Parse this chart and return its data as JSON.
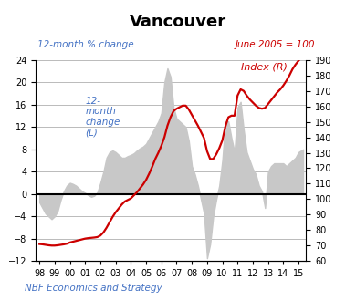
{
  "title": "Vancouver",
  "subtitle_left": "12-month % change",
  "subtitle_right": "June 2005 = 100",
  "label_left": "12-\nmonth\nchange\n(L)",
  "label_right": "Index (R)",
  "footer": "NBF Economics and Strategy",
  "left_ylim": [
    -12,
    24
  ],
  "right_ylim": [
    60,
    190
  ],
  "left_yticks": [
    -12,
    -8,
    -4,
    0,
    4,
    8,
    12,
    16,
    20,
    24
  ],
  "right_yticks": [
    60,
    70,
    80,
    90,
    100,
    110,
    120,
    130,
    140,
    150,
    160,
    170,
    180,
    190
  ],
  "xtick_labels": [
    "98",
    "99",
    "00",
    "01",
    "02",
    "03",
    "04",
    "05",
    "06",
    "07",
    "08",
    "09",
    "10",
    "11",
    "12",
    "13",
    "14",
    "15"
  ],
  "area_data_x": [
    1998.0,
    1998.2,
    1998.4,
    1998.6,
    1998.8,
    1999.0,
    1999.2,
    1999.4,
    1999.6,
    1999.8,
    2000.0,
    2000.2,
    2000.4,
    2000.6,
    2000.8,
    2001.0,
    2001.2,
    2001.4,
    2001.6,
    2001.8,
    2002.0,
    2002.2,
    2002.4,
    2002.6,
    2002.8,
    2003.0,
    2003.2,
    2003.4,
    2003.6,
    2003.8,
    2004.0,
    2004.2,
    2004.4,
    2004.6,
    2004.8,
    2005.0,
    2005.2,
    2005.4,
    2005.6,
    2005.8,
    2006.0,
    2006.2,
    2006.4,
    2006.6,
    2006.8,
    2007.0,
    2007.2,
    2007.4,
    2007.6,
    2007.8,
    2008.0,
    2008.2,
    2008.4,
    2008.6,
    2008.8,
    2009.0,
    2009.2,
    2009.4,
    2009.6,
    2009.8,
    2010.0,
    2010.2,
    2010.4,
    2010.6,
    2010.8,
    2011.0,
    2011.2,
    2011.4,
    2011.6,
    2011.8,
    2012.0,
    2012.2,
    2012.4,
    2012.6,
    2012.8,
    2013.0,
    2013.2,
    2013.4,
    2013.6,
    2013.8,
    2014.0,
    2014.2,
    2014.4,
    2014.6,
    2014.8,
    2015.0,
    2015.3
  ],
  "area_data_y": [
    -1.5,
    -2.5,
    -3.5,
    -4.0,
    -4.5,
    -4.0,
    -3.0,
    -1.0,
    0.5,
    1.5,
    2.0,
    1.8,
    1.5,
    1.0,
    0.5,
    0.2,
    -0.2,
    -0.5,
    -0.3,
    0.3,
    2.0,
    4.0,
    6.5,
    7.5,
    7.8,
    7.5,
    7.0,
    6.5,
    6.5,
    6.8,
    7.0,
    7.3,
    7.8,
    8.2,
    8.5,
    9.0,
    10.0,
    11.0,
    12.0,
    13.0,
    14.5,
    20.0,
    22.5,
    21.0,
    15.5,
    13.5,
    13.0,
    12.5,
    12.0,
    9.5,
    5.0,
    3.5,
    1.5,
    -1.0,
    -3.5,
    -11.5,
    -9.0,
    -4.0,
    -1.0,
    1.5,
    6.0,
    13.0,
    13.0,
    10.0,
    7.5,
    15.5,
    16.5,
    11.5,
    7.5,
    6.0,
    4.5,
    3.5,
    1.5,
    0.5,
    -2.5,
    4.0,
    5.0,
    5.5,
    5.5,
    5.5,
    5.5,
    5.0,
    5.5,
    6.0,
    6.5,
    7.5,
    8.0
  ],
  "line_data_x": [
    1998.0,
    1998.2,
    1998.4,
    1998.6,
    1998.8,
    1999.0,
    1999.2,
    1999.4,
    1999.6,
    1999.8,
    2000.0,
    2000.2,
    2000.4,
    2000.6,
    2000.8,
    2001.0,
    2001.2,
    2001.4,
    2001.6,
    2001.8,
    2002.0,
    2002.2,
    2002.4,
    2002.6,
    2002.8,
    2003.0,
    2003.2,
    2003.4,
    2003.6,
    2003.8,
    2004.0,
    2004.2,
    2004.4,
    2004.6,
    2004.8,
    2005.0,
    2005.2,
    2005.4,
    2005.6,
    2005.8,
    2006.0,
    2006.2,
    2006.4,
    2006.6,
    2006.8,
    2007.0,
    2007.2,
    2007.4,
    2007.6,
    2007.8,
    2008.0,
    2008.2,
    2008.4,
    2008.6,
    2008.8,
    2009.0,
    2009.2,
    2009.4,
    2009.6,
    2009.8,
    2010.0,
    2010.2,
    2010.4,
    2010.6,
    2010.8,
    2011.0,
    2011.2,
    2011.4,
    2011.6,
    2011.8,
    2012.0,
    2012.2,
    2012.4,
    2012.6,
    2012.8,
    2013.0,
    2013.2,
    2013.4,
    2013.6,
    2013.8,
    2014.0,
    2014.2,
    2014.4,
    2014.6,
    2014.8,
    2015.0,
    2015.3
  ],
  "line_data_y": [
    71.0,
    70.8,
    70.5,
    70.2,
    70.0,
    70.0,
    70.2,
    70.5,
    70.8,
    71.2,
    72.0,
    72.5,
    73.0,
    73.5,
    74.0,
    74.5,
    74.8,
    75.0,
    75.2,
    75.5,
    76.5,
    78.5,
    81.5,
    85.0,
    88.5,
    91.5,
    94.0,
    96.5,
    98.5,
    99.5,
    100.5,
    102.5,
    104.5,
    107.0,
    109.5,
    112.5,
    116.5,
    121.0,
    126.0,
    130.0,
    134.5,
    140.0,
    147.5,
    153.0,
    157.0,
    158.5,
    159.5,
    160.5,
    160.5,
    158.0,
    154.5,
    151.0,
    147.5,
    143.5,
    139.5,
    131.0,
    126.0,
    126.0,
    129.0,
    133.0,
    138.0,
    147.0,
    153.0,
    154.0,
    154.0,
    167.0,
    171.0,
    170.0,
    167.0,
    164.5,
    162.5,
    160.5,
    159.0,
    158.5,
    159.0,
    161.5,
    164.0,
    166.5,
    169.0,
    171.0,
    173.5,
    176.5,
    180.0,
    184.0,
    187.0,
    189.5,
    193.0
  ],
  "area_color": "#c8c8c8",
  "line_color": "#cc0000",
  "zero_line_color": "#000000",
  "grid_color": "#b0b0b0",
  "title_color": "#000000",
  "left_label_color": "#4472c4",
  "right_label_color": "#cc0000",
  "subtitle_left_color": "#4472c4",
  "subtitle_right_color": "#cc0000",
  "footer_color": "#4472c4",
  "tick_label_color": "#000000",
  "xlim": [
    1997.75,
    2015.5
  ]
}
